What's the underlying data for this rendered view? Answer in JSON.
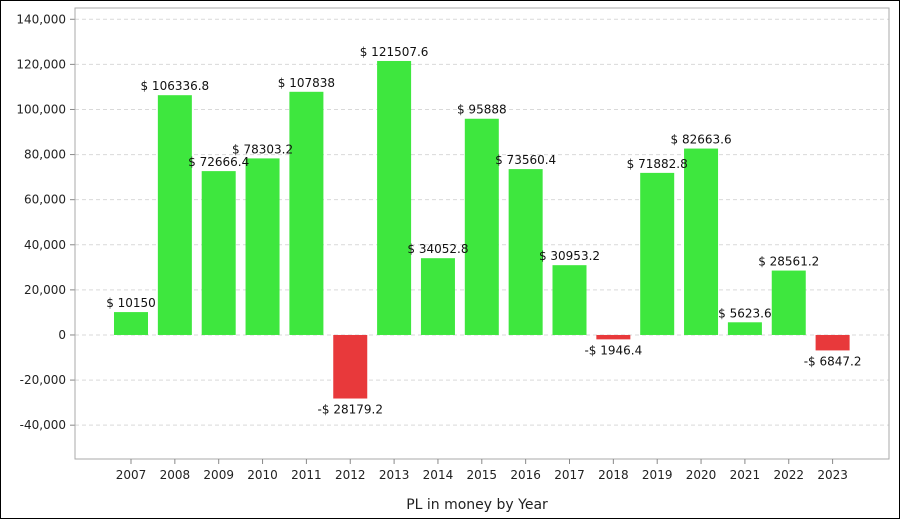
{
  "chart_data": {
    "type": "bar",
    "xlabel": "PL in money by Year",
    "ylabel": "",
    "ylim": [
      -55000,
      145000
    ],
    "yticks": [
      -40000,
      -20000,
      0,
      20000,
      40000,
      60000,
      80000,
      100000,
      120000,
      140000
    ],
    "ytick_labels": [
      "-40,000",
      "-20,000",
      "0",
      "20,000",
      "40,000",
      "60,000",
      "80,000",
      "100,000",
      "120,000",
      "140,000"
    ],
    "grid": true,
    "categories": [
      "2007",
      "2008",
      "2009",
      "2010",
      "2011",
      "2012",
      "2013",
      "2014",
      "2015",
      "2016",
      "2017",
      "2018",
      "2019",
      "2020",
      "2021",
      "2022",
      "2023"
    ],
    "values": [
      10150,
      106336.8,
      72666.4,
      78303.2,
      107838,
      -28179.2,
      121507.6,
      34052.8,
      95888,
      73560.4,
      30953.2,
      -1946.4,
      71882.8,
      82663.6,
      5623.6,
      28561.2,
      -6847.2
    ],
    "data_labels": [
      "$ 10150",
      "$ 106336.8",
      "$ 72666.4",
      "$ 78303.2",
      "$ 107838",
      "-$ 28179.2",
      "$ 121507.6",
      "$ 34052.8",
      "$ 95888",
      "$ 73560.4",
      "$ 30953.2",
      "-$ 1946.4",
      "$ 71882.8",
      "$ 82663.6",
      "$ 5623.6",
      "$ 28561.2",
      "-$ 6847.2"
    ],
    "colors": {
      "positive": "#3ee73e",
      "negative": "#e8393b",
      "grid": "#d9d9d9",
      "axis": "#888888"
    }
  }
}
